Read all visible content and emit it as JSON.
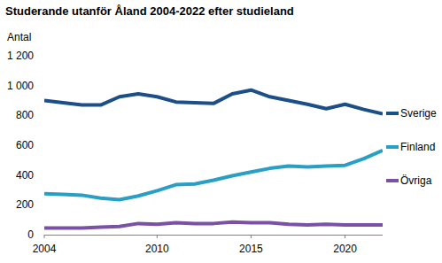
{
  "chart_data": {
    "type": "line",
    "title": "Studerande utanför Åland 2004-2022 efter studieland",
    "y_label": "Antal",
    "x": [
      2004,
      2005,
      2006,
      2007,
      2008,
      2009,
      2010,
      2011,
      2012,
      2013,
      2014,
      2015,
      2016,
      2017,
      2018,
      2019,
      2020,
      2021,
      2022
    ],
    "series": [
      {
        "name": "Sverige",
        "color": "#1c4f87",
        "values": [
          900,
          885,
          870,
          870,
          925,
          945,
          925,
          890,
          885,
          880,
          945,
          970,
          925,
          900,
          875,
          845,
          875,
          840,
          810
        ]
      },
      {
        "name": "Finland",
        "color": "#2a9fc6",
        "values": [
          275,
          270,
          265,
          245,
          235,
          260,
          295,
          335,
          340,
          365,
          395,
          420,
          445,
          460,
          455,
          460,
          465,
          510,
          565
        ]
      },
      {
        "name": "Övriga",
        "color": "#7b52a3",
        "values": [
          45,
          45,
          45,
          50,
          55,
          75,
          70,
          80,
          75,
          75,
          85,
          80,
          80,
          70,
          65,
          70,
          65,
          65,
          65
        ]
      }
    ],
    "xlim": [
      2004,
      2022
    ],
    "xticks": [
      2004,
      2010,
      2015,
      2020
    ],
    "ylim": [
      0,
      1200
    ],
    "yticks": [
      0,
      200,
      400,
      600,
      800,
      {
        "value": 1000,
        "label": "1 000"
      },
      {
        "value": 1200,
        "label": "1 200"
      }
    ],
    "grid": false,
    "legend": "right"
  }
}
